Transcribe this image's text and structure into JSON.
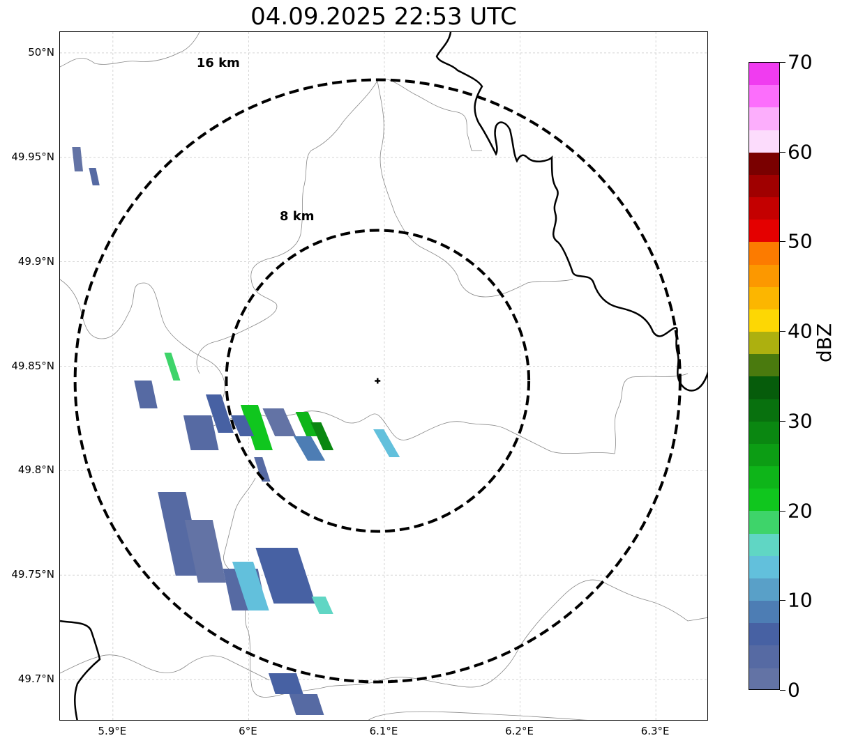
{
  "title": "04.09.2025 22:53 UTC",
  "map": {
    "lat_ticks": [
      "50°N",
      "49.95°N",
      "49.9°N",
      "49.85°N",
      "49.8°N",
      "49.75°N",
      "49.7°N"
    ],
    "lon_ticks": [
      "5.9°E",
      "6°E",
      "6.1°E",
      "6.2°E",
      "6.3°E"
    ],
    "lat_values": [
      50.0,
      49.95,
      49.9,
      49.85,
      49.8,
      49.75,
      49.7
    ],
    "lon_values": [
      5.9,
      6.0,
      6.1,
      6.2,
      6.3
    ],
    "extent": {
      "lon_min": 5.861,
      "lon_max": 6.339,
      "lat_min": 49.68,
      "lat_max": 50.01
    },
    "center": {
      "lon": 6.095,
      "lat": 49.843
    },
    "rings": [
      {
        "label": "8 km",
        "radius_km": 8
      },
      {
        "label": "16 km",
        "radius_km": 16
      }
    ]
  },
  "colorbar": {
    "label": "dBZ",
    "ticks": [
      "0",
      "10",
      "20",
      "30",
      "40",
      "50",
      "60",
      "70"
    ],
    "min": 0,
    "max": 70,
    "step": 2.5,
    "colors": [
      "#6373a5",
      "#566aa3",
      "#4761a3",
      "#4d7db4",
      "#59a0c8",
      "#62c0dc",
      "#60d6c4",
      "#3ed46a",
      "#10c61e",
      "#0eb519",
      "#0c9d14",
      "#0a8711",
      "#08710e",
      "#065c0b",
      "#4a7a0e",
      "#adb00f",
      "#fdd704",
      "#fcb600",
      "#fc9800",
      "#fc7b00",
      "#e40000",
      "#c40000",
      "#a00000",
      "#7a0000",
      "#fcdcfc",
      "#fcaefc",
      "#fc6efc",
      "#f03cf0"
    ]
  }
}
